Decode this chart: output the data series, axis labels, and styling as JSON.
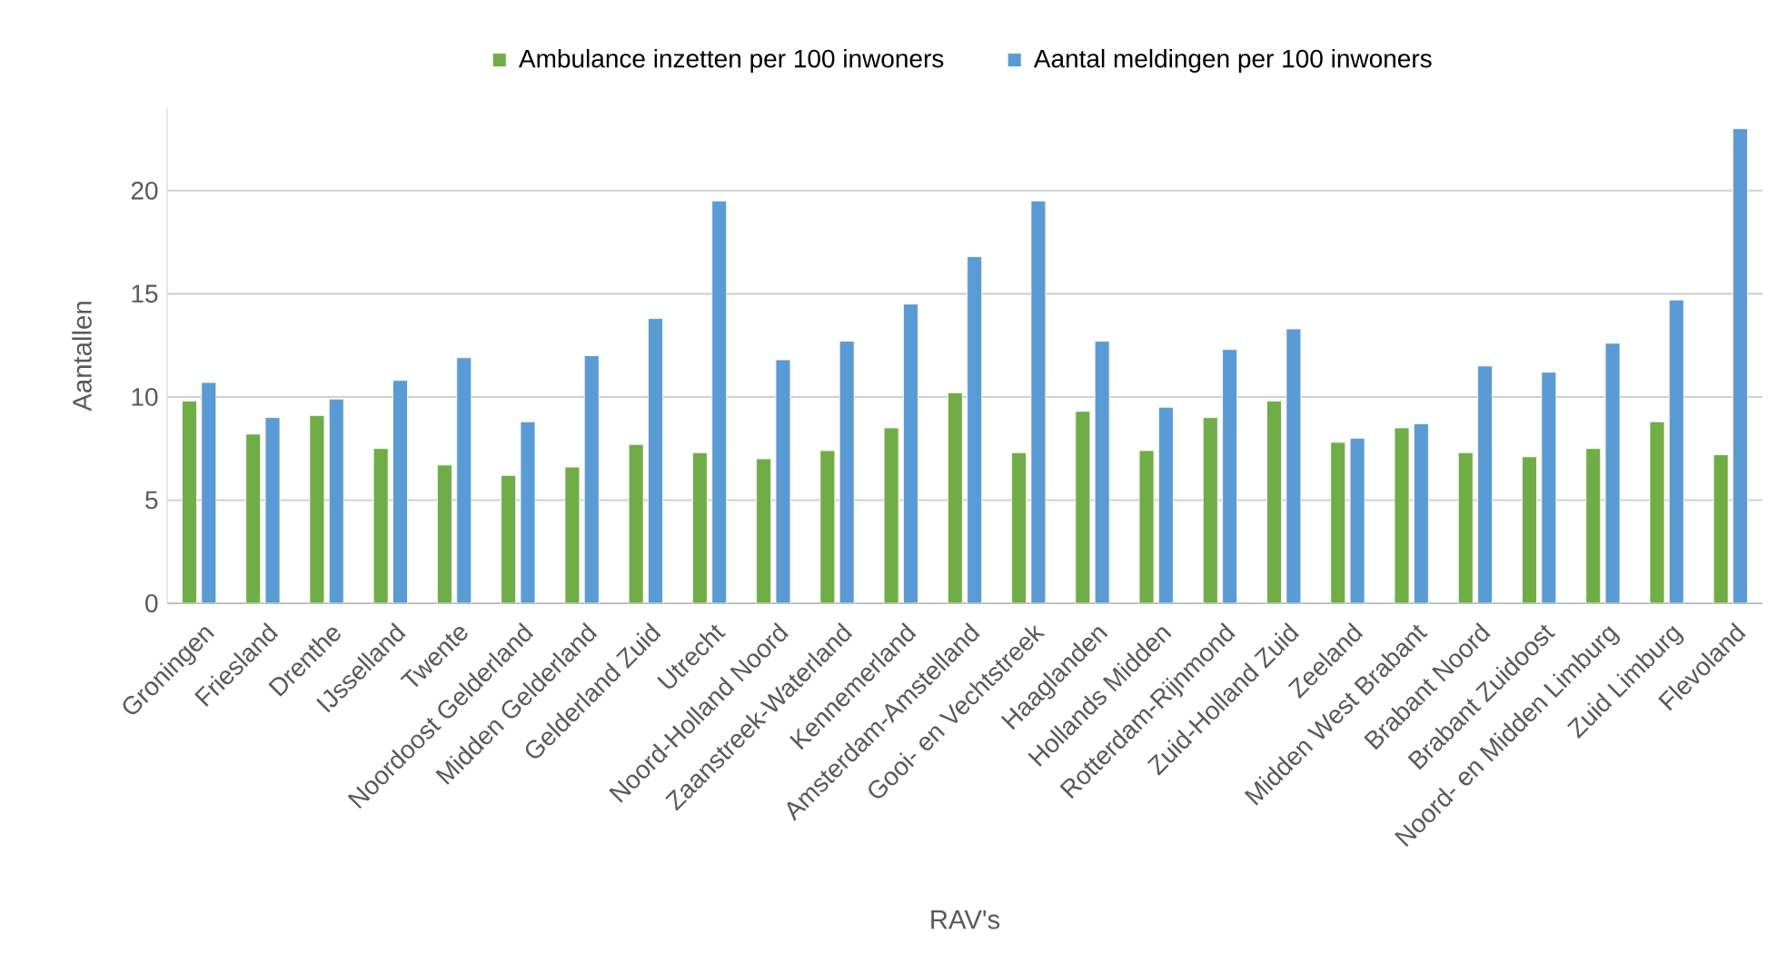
{
  "chart_data": {
    "type": "bar",
    "xlabel": "RAV's",
    "ylabel": "Aantallen",
    "categories": [
      "Groningen",
      "Friesland",
      "Drenthe",
      "IJsselland",
      "Twente",
      "Noordoost Gelderland",
      "Midden Gelderland",
      "Gelderland Zuid",
      "Utrecht",
      "Noord-Holland Noord",
      "Zaanstreek-Waterland",
      "Kennemerland",
      "Amsterdam-Amstelland",
      "Gooi- en Vechtstreek",
      "Haaglanden",
      "Hollands Midden",
      "Rotterdam-Rijnmond",
      "Zuid-Holland Zuid",
      "Zeeland",
      "Midden West Brabant",
      "Brabant Noord",
      "Brabant Zuidoost",
      "Noord- en Midden Limburg",
      "Zuid Limburg",
      "Flevoland"
    ],
    "series": [
      {
        "name": "Ambulance inzetten per 100 inwoners",
        "color": "#70ad47",
        "values": [
          9.8,
          8.2,
          9.1,
          7.5,
          6.7,
          6.2,
          6.6,
          7.7,
          7.3,
          7.0,
          7.4,
          8.5,
          10.2,
          7.3,
          9.3,
          7.4,
          9.0,
          9.8,
          7.8,
          8.5,
          7.3,
          7.1,
          7.5,
          8.8,
          7.2
        ]
      },
      {
        "name": "Aantal meldingen per 100 inwoners",
        "color": "#5b9bd5",
        "values": [
          10.7,
          9.0,
          9.9,
          10.8,
          11.9,
          8.8,
          12.0,
          13.8,
          19.5,
          11.8,
          12.7,
          14.5,
          16.8,
          19.5,
          12.7,
          9.5,
          12.3,
          13.3,
          8.0,
          8.7,
          11.5,
          11.2,
          12.6,
          14.7,
          23.0
        ]
      }
    ],
    "ylim": [
      0,
      24
    ],
    "yticks": [
      0,
      5,
      10,
      15,
      20
    ],
    "grid": "y",
    "legend": "top"
  }
}
